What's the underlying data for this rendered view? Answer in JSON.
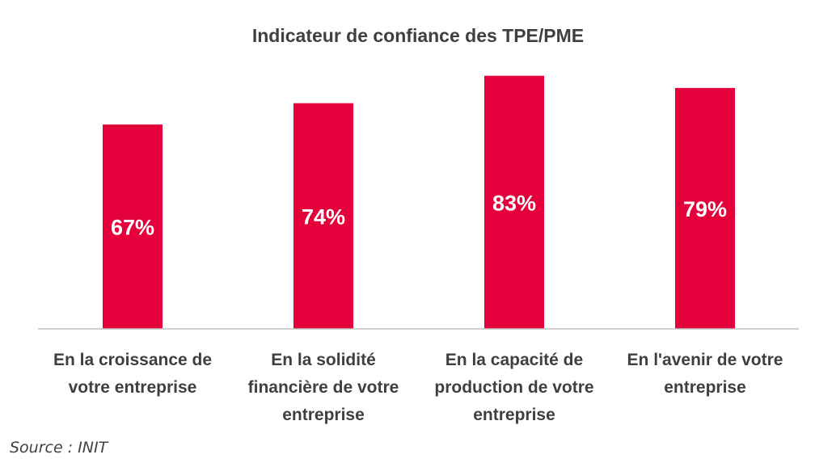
{
  "chart_data": {
    "type": "bar",
    "title": "Indicateur de confiance des TPE/PME",
    "categories": [
      [
        "En la croissance de",
        "votre entreprise"
      ],
      [
        "En la solidité",
        "financière de votre",
        "entreprise"
      ],
      [
        "En la capacité de",
        "production de votre",
        "entreprise"
      ],
      [
        "En l'avenir de votre",
        "entreprise"
      ]
    ],
    "values": [
      67,
      74,
      83,
      79
    ],
    "data_labels": [
      "67%",
      "74%",
      "83%",
      "79%"
    ],
    "bar_color": "#e4003a",
    "axis_line_color": "#bfbfbf",
    "grid": false,
    "legend": "none"
  },
  "source": "Source : INIT"
}
